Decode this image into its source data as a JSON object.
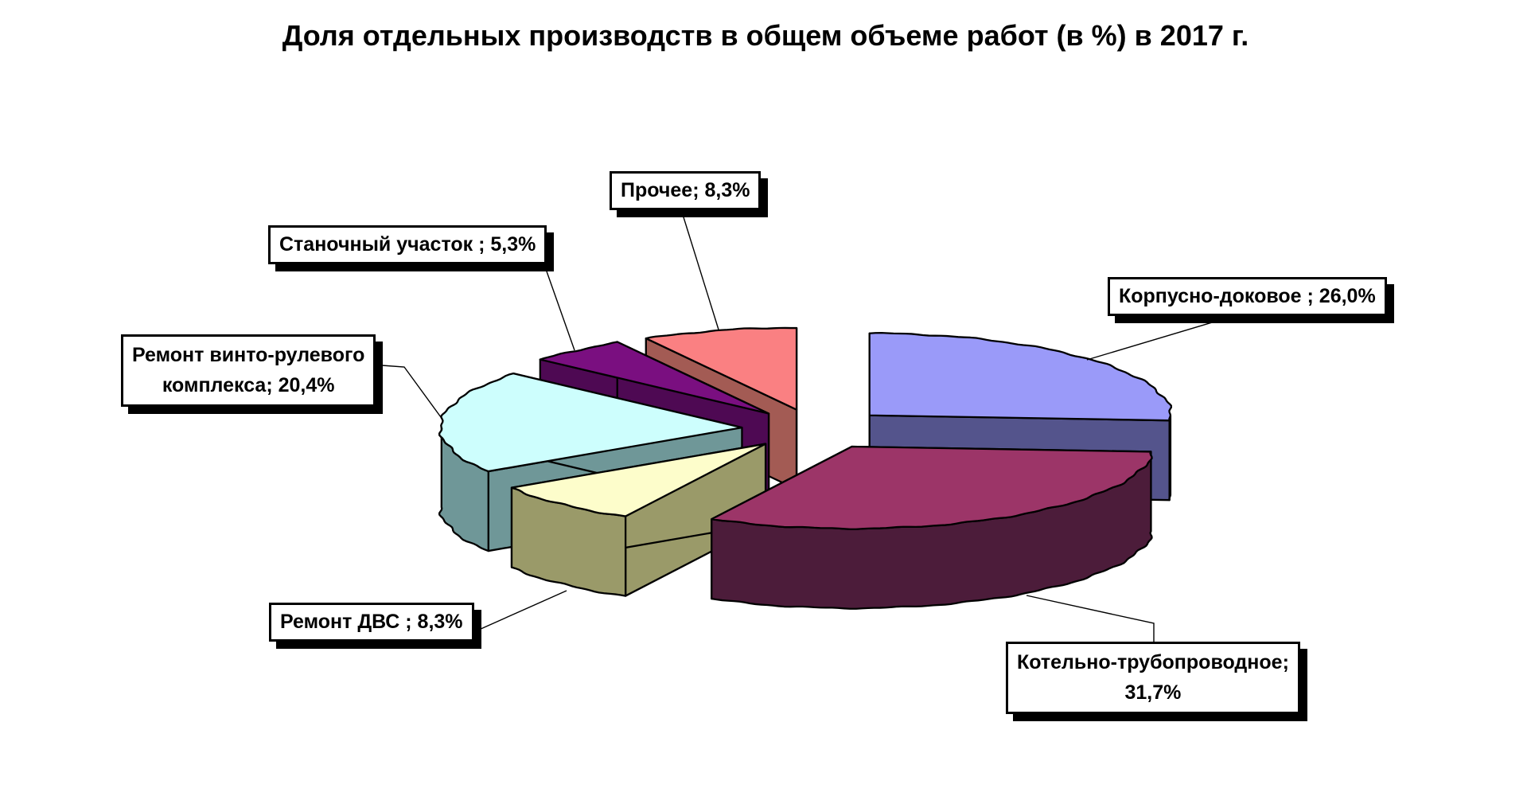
{
  "page": {
    "background_color": "#FFFFFF",
    "outline_color": "#000000"
  },
  "chart_data": {
    "type": "pie",
    "title": "Доля отдельных производств в общем объеме работ (в %) в 2017 г.",
    "is_3d": true,
    "exploded": true,
    "legend": "none",
    "data_labels": "callout-boxes-with-leader-lines",
    "start_angle_deg": 0,
    "direction": "clockwise",
    "unit": "%",
    "categories": [
      "Корпусно-доковое",
      "Котельно-трубопроводное",
      "Ремонт ДВС",
      "Ремонт винто-рулевого комплекса",
      "Станочный участок",
      "Прочее"
    ],
    "values": [
      26.0,
      31.7,
      8.3,
      20.4,
      5.3,
      8.3
    ],
    "slices": [
      {
        "name": "Корпусно-доковое",
        "value": 26.0,
        "value_text": "26,0%",
        "label_lines": [
          "Корпусно-доковое ; 26,0%"
        ],
        "top_color": "#9A9AF9",
        "side_color": "#54548C"
      },
      {
        "name": "Котельно-трубопроводное",
        "value": 31.7,
        "value_text": "31,7%",
        "label_lines": [
          "Котельно-трубопроводное;",
          "31,7%"
        ],
        "top_color": "#9C3568",
        "side_color": "#4C1C3A"
      },
      {
        "name": "Ремонт ДВС",
        "value": 8.3,
        "value_text": "8,3%",
        "label_lines": [
          "Ремонт ДВС ; 8,3%"
        ],
        "top_color": "#FDFDCB",
        "side_color": "#9A9A69"
      },
      {
        "name": "Ремонт винто-рулевого комплекса",
        "value": 20.4,
        "value_text": "20,4%",
        "label_lines": [
          "Ремонт винто-рулевого",
          "комплекса; 20,4%"
        ],
        "top_color": "#CDFEFD",
        "side_color": "#6F9798"
      },
      {
        "name": "Станочный участок",
        "value": 5.3,
        "value_text": "5,3%",
        "label_lines": [
          "Станочный участок ; 5,3%"
        ],
        "top_color": "#7A0F80",
        "side_color": "#4E0953"
      },
      {
        "name": "Прочее",
        "value": 8.3,
        "value_text": "8,3%",
        "label_lines": [
          "Прочее; 8,3%"
        ],
        "top_color": "#FA8082",
        "side_color": "#A35B54"
      }
    ]
  }
}
